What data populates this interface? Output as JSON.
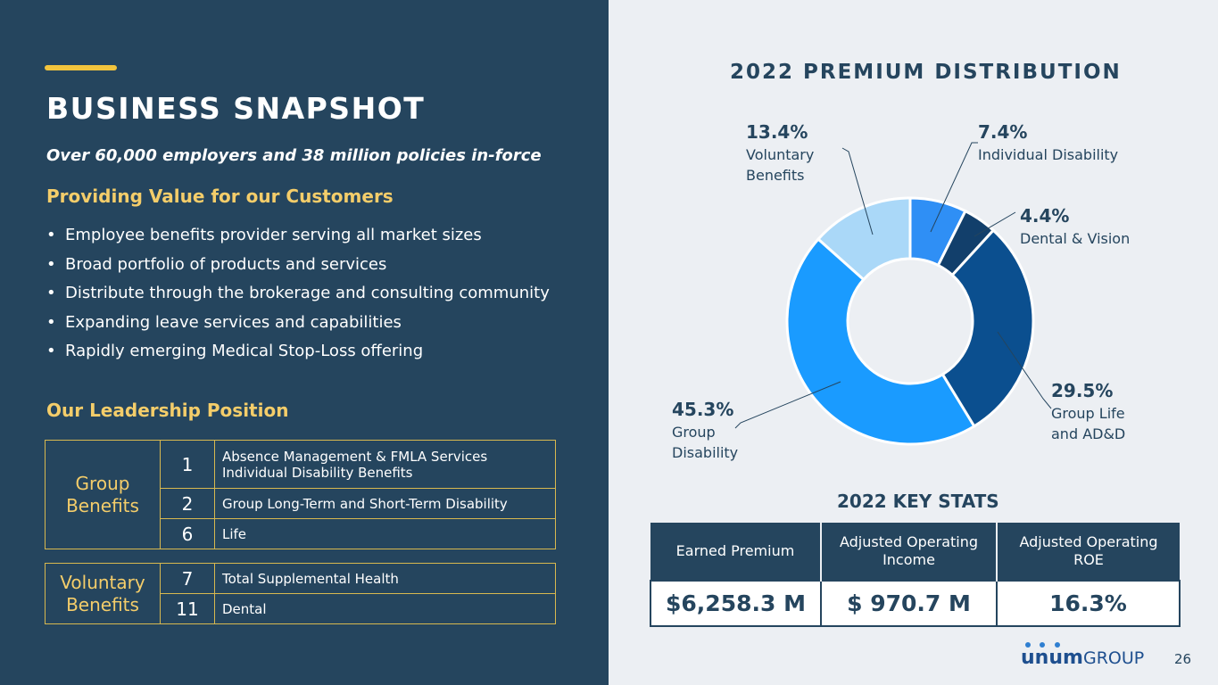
{
  "left": {
    "title": "BUSINESS SNAPSHOT",
    "subtitle": "Over 60,000 employers and 38 million policies in-force",
    "value_heading": "Providing Value for our Customers",
    "bullets": [
      "Employee benefits provider serving all market sizes",
      "Broad portfolio of products and services",
      "Distribute through the brokerage and consulting community",
      "Expanding leave services and capabilities",
      "Rapidly emerging Medical Stop-Loss offering"
    ],
    "leadership_heading": "Our Leadership Position",
    "group_benefits": {
      "label": "Group Benefits",
      "rows": [
        {
          "rank": "1",
          "desc_line1": "Absence Management & FMLA Services",
          "desc_line2": "Individual Disability Benefits"
        },
        {
          "rank": "2",
          "desc": "Group Long-Term and Short-Term Disability"
        },
        {
          "rank": "6",
          "desc": "Life"
        }
      ]
    },
    "voluntary_benefits": {
      "label": "Voluntary Benefits",
      "rows": [
        {
          "rank": "7",
          "desc": "Total Supplemental Health"
        },
        {
          "rank": "11",
          "desc": "Dental"
        }
      ]
    }
  },
  "chart_data": {
    "type": "pie",
    "title": "2022 PREMIUM DISTRIBUTION",
    "categories": [
      "Individual Disability",
      "Dental & Vision",
      "Group Life and AD&D",
      "Group Disability",
      "Voluntary Benefits"
    ],
    "values": [
      7.4,
      4.4,
      29.5,
      45.3,
      13.4
    ],
    "unit": "%",
    "colors": [
      "#2f8ff5",
      "#123f6b",
      "#0b4f8f",
      "#1a9bff",
      "#aad8f8"
    ],
    "labels": {
      "individual": {
        "pct": "7.4%",
        "line1": "Individual Disability"
      },
      "dental": {
        "pct": "4.4%",
        "line1": "Dental & Vision"
      },
      "life": {
        "pct": "29.5%",
        "line1": "Group Life",
        "line2": "and AD&D"
      },
      "disability": {
        "pct": "45.3%",
        "line1": "Group",
        "line2": "Disability"
      },
      "voluntary": {
        "pct": "13.4%",
        "line1": "Voluntary",
        "line2": "Benefits"
      }
    }
  },
  "key_stats": {
    "title": "2022 KEY STATS",
    "headers": {
      "earned": "Earned Premium",
      "income_line1": "Adjusted Operating",
      "income_line2": "Income",
      "roe_line1": "Adjusted Operating",
      "roe_line2": "ROE"
    },
    "values": {
      "earned": "$6,258.3 M",
      "income": "$ 970.7 M",
      "roe": "16.3%"
    }
  },
  "footer": {
    "logo_left": "unum",
    "logo_right": "GROUP",
    "page_number": "26"
  },
  "colors": {
    "navy": "#25455e",
    "gold": "#f4cd6a",
    "bg_right": "#eceff3"
  }
}
